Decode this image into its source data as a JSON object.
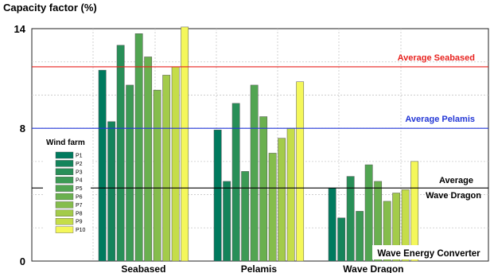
{
  "chart_data": {
    "type": "bar",
    "ylabel": "Capacity factor (%)",
    "xlabel": "Wave Energy Converter",
    "ylim": [
      0,
      14
    ],
    "yticks": [
      0,
      8,
      14
    ],
    "categories": [
      "Seabased",
      "Pelamis",
      "Wave Dragon"
    ],
    "legend_title": "Wind farm",
    "legend_position": "left",
    "series": [
      {
        "name": "P1",
        "color": "#007a5e",
        "values": [
          11.5,
          7.9,
          4.4
        ]
      },
      {
        "name": "P2",
        "color": "#14845b",
        "values": [
          8.4,
          4.8,
          2.6
        ]
      },
      {
        "name": "P3",
        "color": "#288f58",
        "values": [
          13.0,
          9.5,
          5.1
        ]
      },
      {
        "name": "P4",
        "color": "#3c9a55",
        "values": [
          10.6,
          5.4,
          3.0
        ]
      },
      {
        "name": "P5",
        "color": "#52a552",
        "values": [
          13.7,
          10.6,
          5.8
        ]
      },
      {
        "name": "P6",
        "color": "#6ab04f",
        "values": [
          12.3,
          8.7,
          4.8
        ]
      },
      {
        "name": "P7",
        "color": "#85bd4c",
        "values": [
          10.3,
          6.5,
          3.6
        ]
      },
      {
        "name": "P8",
        "color": "#a3cb4a",
        "values": [
          11.2,
          7.4,
          4.1
        ]
      },
      {
        "name": "P9",
        "color": "#c5dd49",
        "values": [
          11.7,
          8.0,
          4.3
        ]
      },
      {
        "name": "P10",
        "color": "#f4f75a",
        "values": [
          14.1,
          10.8,
          6.0
        ]
      }
    ],
    "reference_lines": [
      {
        "label": "Average Seabased",
        "value": 11.7,
        "color": "#e8231f"
      },
      {
        "label": "Average Pelamis",
        "value": 8.0,
        "color": "#2236d6"
      },
      {
        "label_lines": [
          "Average",
          "Wave Dragon"
        ],
        "value": 4.4,
        "color": "#000000"
      }
    ],
    "grid": true
  }
}
